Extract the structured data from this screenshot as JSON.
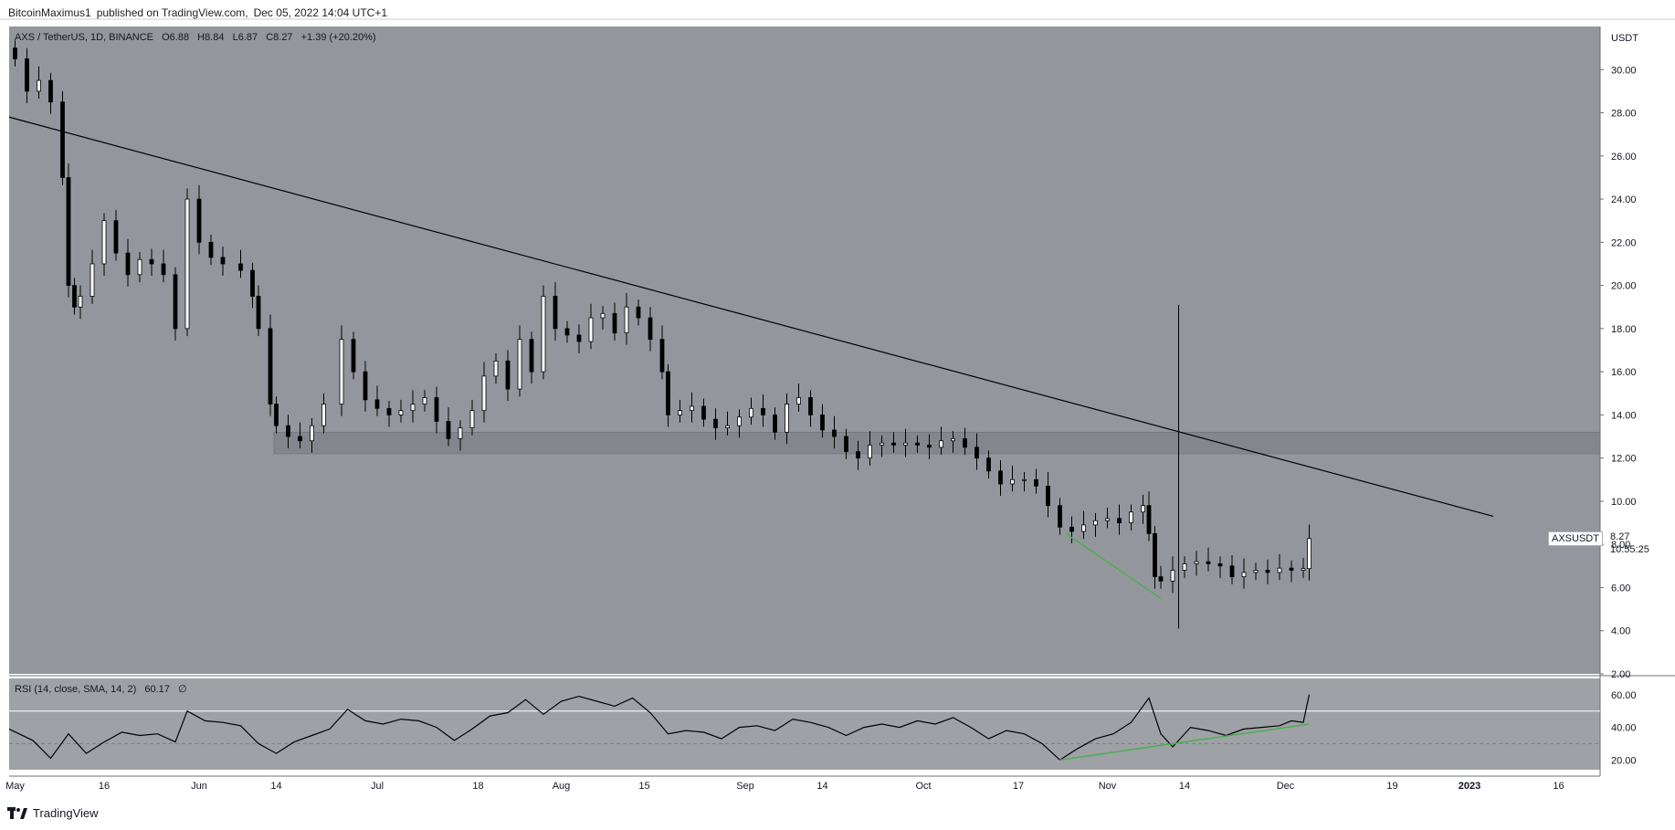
{
  "header": {
    "author": "BitcoinMaximus1",
    "published_text": "published on TradingView.com,",
    "date_text": "Dec 05, 2022 14:04 UTC+1"
  },
  "symbol_bar": {
    "symbol": "AXS / TetherUS, 1D, BINANCE",
    "o_label": "O",
    "o_value": "6.88",
    "h_label": "H",
    "h_value": "8.84",
    "l_label": "L",
    "l_value": "6.87",
    "c_label": "C",
    "c_value": "8.27",
    "change": "+1.39 (+20.20%)"
  },
  "price_axis": {
    "currency": "USDT",
    "ticks": [
      "30.00",
      "28.00",
      "26.00",
      "24.00",
      "22.00",
      "20.00",
      "18.00",
      "16.00",
      "14.00",
      "12.00",
      "10.00",
      "8.00",
      "6.00",
      "4.00",
      "2.00"
    ]
  },
  "rsi_panel": {
    "label": "RSI (14, close, SMA, 14, 2)",
    "value": "60.17",
    "extra": "∅",
    "ticks": [
      "60.00",
      "40.00",
      "20.00"
    ]
  },
  "time_axis": {
    "labels": [
      "May",
      "16",
      "Jun",
      "14",
      "Jul",
      "18",
      "Aug",
      "15",
      "Sep",
      "14",
      "Oct",
      "17",
      "Nov",
      "14",
      "Dec",
      "19",
      "2023",
      "16"
    ]
  },
  "last_price": {
    "ticker": "AXSUSDT",
    "price": "8.27",
    "countdown": "10:55:25"
  },
  "footer": {
    "brand": "TradingView"
  },
  "colors": {
    "background": "#93979d",
    "rsi_background": "#9ea2a7",
    "up_candle": "#ffffff",
    "down_candle": "#000000",
    "trendline": "#000000",
    "divergence": "#4caf50",
    "support_zone": "#7e8288"
  },
  "chart_data": [
    {
      "type": "candlestick",
      "title": "AXS / TetherUS, 1D, BINANCE",
      "ylabel": "USDT",
      "ylim": [
        2,
        32
      ],
      "x_range": [
        "2022-04-30",
        "2023-01-23"
      ],
      "series": [
        {
          "name": "AXSUSDT",
          "close_points": [
            [
              "2022-05-01",
              30.5
            ],
            [
              "2022-05-03",
              29.0
            ],
            [
              "2022-05-05",
              29.5
            ],
            [
              "2022-05-07",
              28.5
            ],
            [
              "2022-05-09",
              25.0
            ],
            [
              "2022-05-10",
              20.0
            ],
            [
              "2022-05-11",
              19.0
            ],
            [
              "2022-05-12",
              19.5
            ],
            [
              "2022-05-14",
              21.0
            ],
            [
              "2022-05-16",
              23.0
            ],
            [
              "2022-05-18",
              21.5
            ],
            [
              "2022-05-20",
              20.5
            ],
            [
              "2022-05-22",
              21.2
            ],
            [
              "2022-05-24",
              21.0
            ],
            [
              "2022-05-26",
              20.5
            ],
            [
              "2022-05-28",
              18.0
            ],
            [
              "2022-05-30",
              24.0
            ],
            [
              "2022-06-01",
              22.0
            ],
            [
              "2022-06-03",
              21.3
            ],
            [
              "2022-06-05",
              21.0
            ],
            [
              "2022-06-08",
              20.7
            ],
            [
              "2022-06-10",
              19.5
            ],
            [
              "2022-06-11",
              18.0
            ],
            [
              "2022-06-13",
              14.5
            ],
            [
              "2022-06-14",
              13.5
            ],
            [
              "2022-06-16",
              13.0
            ],
            [
              "2022-06-18",
              12.8
            ],
            [
              "2022-06-20",
              13.5
            ],
            [
              "2022-06-22",
              14.5
            ],
            [
              "2022-06-25",
              17.5
            ],
            [
              "2022-06-27",
              16.0
            ],
            [
              "2022-06-29",
              14.7
            ],
            [
              "2022-07-01",
              14.3
            ],
            [
              "2022-07-03",
              14.0
            ],
            [
              "2022-07-05",
              14.2
            ],
            [
              "2022-07-07",
              14.5
            ],
            [
              "2022-07-09",
              14.8
            ],
            [
              "2022-07-11",
              13.7
            ],
            [
              "2022-07-13",
              12.9
            ],
            [
              "2022-07-15",
              13.4
            ],
            [
              "2022-07-17",
              14.2
            ],
            [
              "2022-07-19",
              15.8
            ],
            [
              "2022-07-21",
              16.5
            ],
            [
              "2022-07-23",
              15.2
            ],
            [
              "2022-07-25",
              17.5
            ],
            [
              "2022-07-27",
              16.0
            ],
            [
              "2022-07-29",
              19.5
            ],
            [
              "2022-07-31",
              18.0
            ],
            [
              "2022-08-02",
              17.7
            ],
            [
              "2022-08-04",
              17.4
            ],
            [
              "2022-08-06",
              18.5
            ],
            [
              "2022-08-08",
              18.7
            ],
            [
              "2022-08-10",
              17.8
            ],
            [
              "2022-08-12",
              19.0
            ],
            [
              "2022-08-14",
              18.5
            ],
            [
              "2022-08-16",
              17.5
            ],
            [
              "2022-08-18",
              16.0
            ],
            [
              "2022-08-19",
              14.0
            ],
            [
              "2022-08-21",
              14.2
            ],
            [
              "2022-08-23",
              14.4
            ],
            [
              "2022-08-25",
              13.8
            ],
            [
              "2022-08-27",
              13.4
            ],
            [
              "2022-08-29",
              13.5
            ],
            [
              "2022-08-31",
              13.9
            ],
            [
              "2022-09-02",
              14.3
            ],
            [
              "2022-09-04",
              14.0
            ],
            [
              "2022-09-06",
              13.2
            ],
            [
              "2022-09-08",
              14.5
            ],
            [
              "2022-09-10",
              14.8
            ],
            [
              "2022-09-12",
              14.0
            ],
            [
              "2022-09-14",
              13.3
            ],
            [
              "2022-09-16",
              13.0
            ],
            [
              "2022-09-18",
              12.3
            ],
            [
              "2022-09-20",
              12.0
            ],
            [
              "2022-09-22",
              12.6
            ],
            [
              "2022-09-24",
              12.7
            ],
            [
              "2022-09-26",
              12.6
            ],
            [
              "2022-09-28",
              12.7
            ],
            [
              "2022-09-30",
              12.6
            ],
            [
              "2022-10-02",
              12.5
            ],
            [
              "2022-10-04",
              12.8
            ],
            [
              "2022-10-06",
              12.9
            ],
            [
              "2022-10-08",
              12.5
            ],
            [
              "2022-10-10",
              12.0
            ],
            [
              "2022-10-12",
              11.4
            ],
            [
              "2022-10-14",
              10.8
            ],
            [
              "2022-10-16",
              11.0
            ],
            [
              "2022-10-18",
              11.0
            ],
            [
              "2022-10-20",
              10.7
            ],
            [
              "2022-10-22",
              9.8
            ],
            [
              "2022-10-24",
              8.8
            ],
            [
              "2022-10-26",
              8.6
            ],
            [
              "2022-10-28",
              8.9
            ],
            [
              "2022-10-30",
              9.1
            ],
            [
              "2022-11-01",
              9.2
            ],
            [
              "2022-11-03",
              9.0
            ],
            [
              "2022-11-05",
              9.5
            ],
            [
              "2022-11-07",
              9.8
            ],
            [
              "2022-11-08",
              8.5
            ],
            [
              "2022-11-09",
              6.5
            ],
            [
              "2022-11-10",
              6.3
            ],
            [
              "2022-11-12",
              6.8
            ],
            [
              "2022-11-14",
              7.1
            ],
            [
              "2022-11-16",
              7.2
            ],
            [
              "2022-11-18",
              7.1
            ],
            [
              "2022-11-20",
              7.0
            ],
            [
              "2022-11-22",
              6.5
            ],
            [
              "2022-11-24",
              6.7
            ],
            [
              "2022-11-26",
              6.8
            ],
            [
              "2022-11-28",
              6.7
            ],
            [
              "2022-11-30",
              6.9
            ],
            [
              "2022-12-02",
              6.8
            ],
            [
              "2022-12-04",
              6.88
            ],
            [
              "2022-12-05",
              8.27
            ]
          ]
        }
      ],
      "trendline": [
        [
          "2022-04-30",
          27.8
        ],
        [
          "2023-01-05",
          9.3
        ]
      ],
      "support_zone": [
        12.2,
        13.2
      ],
      "vertical_line": {
        "date": "2022-11-13",
        "y_range": [
          4.1,
          19.1
        ]
      },
      "divergence_line": [
        [
          "2022-10-25",
          8.5
        ],
        [
          "2022-11-10",
          5.5
        ]
      ],
      "annotations": [
        {
          "text": "AXSUSDT",
          "value": 8.27
        }
      ]
    },
    {
      "type": "line",
      "title": "RSI (14, close, SMA, 14, 2)",
      "ylim": [
        14,
        70
      ],
      "levels": [
        30,
        50
      ],
      "series": [
        {
          "name": "RSI",
          "points": [
            [
              "2022-04-30",
              39
            ],
            [
              "2022-05-04",
              32
            ],
            [
              "2022-05-07",
              21
            ],
            [
              "2022-05-10",
              36
            ],
            [
              "2022-05-13",
              24
            ],
            [
              "2022-05-16",
              31
            ],
            [
              "2022-05-19",
              37
            ],
            [
              "2022-05-22",
              35
            ],
            [
              "2022-05-25",
              36
            ],
            [
              "2022-05-28",
              31
            ],
            [
              "2022-05-30",
              50
            ],
            [
              "2022-06-02",
              44
            ],
            [
              "2022-06-05",
              43
            ],
            [
              "2022-06-08",
              41
            ],
            [
              "2022-06-11",
              30
            ],
            [
              "2022-06-14",
              24
            ],
            [
              "2022-06-17",
              31
            ],
            [
              "2022-06-20",
              35
            ],
            [
              "2022-06-23",
              39
            ],
            [
              "2022-06-26",
              51
            ],
            [
              "2022-06-29",
              44
            ],
            [
              "2022-07-02",
              42
            ],
            [
              "2022-07-05",
              45
            ],
            [
              "2022-07-08",
              44
            ],
            [
              "2022-07-11",
              40
            ],
            [
              "2022-07-14",
              32
            ],
            [
              "2022-07-17",
              39
            ],
            [
              "2022-07-20",
              47
            ],
            [
              "2022-07-23",
              49
            ],
            [
              "2022-07-26",
              57
            ],
            [
              "2022-07-29",
              48
            ],
            [
              "2022-08-01",
              56
            ],
            [
              "2022-08-04",
              59
            ],
            [
              "2022-08-07",
              56
            ],
            [
              "2022-08-10",
              53
            ],
            [
              "2022-08-13",
              58
            ],
            [
              "2022-08-16",
              49
            ],
            [
              "2022-08-19",
              36
            ],
            [
              "2022-08-22",
              38
            ],
            [
              "2022-08-25",
              37
            ],
            [
              "2022-08-28",
              33
            ],
            [
              "2022-08-31",
              40
            ],
            [
              "2022-09-03",
              41
            ],
            [
              "2022-09-06",
              38
            ],
            [
              "2022-09-09",
              45
            ],
            [
              "2022-09-12",
              43
            ],
            [
              "2022-09-15",
              40
            ],
            [
              "2022-09-18",
              35
            ],
            [
              "2022-09-21",
              40
            ],
            [
              "2022-09-24",
              42
            ],
            [
              "2022-09-27",
              40
            ],
            [
              "2022-09-30",
              44
            ],
            [
              "2022-10-03",
              42
            ],
            [
              "2022-10-06",
              46
            ],
            [
              "2022-10-09",
              40
            ],
            [
              "2022-10-12",
              33
            ],
            [
              "2022-10-15",
              38
            ],
            [
              "2022-10-18",
              36
            ],
            [
              "2022-10-21",
              30
            ],
            [
              "2022-10-24",
              20
            ],
            [
              "2022-10-27",
              27
            ],
            [
              "2022-10-30",
              33
            ],
            [
              "2022-11-02",
              36
            ],
            [
              "2022-11-05",
              43
            ],
            [
              "2022-11-08",
              58
            ],
            [
              "2022-11-10",
              36
            ],
            [
              "2022-11-12",
              28
            ],
            [
              "2022-11-15",
              40
            ],
            [
              "2022-11-18",
              38
            ],
            [
              "2022-11-21",
              35
            ],
            [
              "2022-11-24",
              39
            ],
            [
              "2022-11-27",
              40
            ],
            [
              "2022-11-30",
              41
            ],
            [
              "2022-12-02",
              44
            ],
            [
              "2022-12-04",
              43
            ],
            [
              "2022-12-05",
              60.17
            ]
          ]
        }
      ],
      "divergence_line": [
        [
          "2022-10-24",
          20
        ],
        [
          "2022-12-05",
          42
        ]
      ]
    }
  ]
}
